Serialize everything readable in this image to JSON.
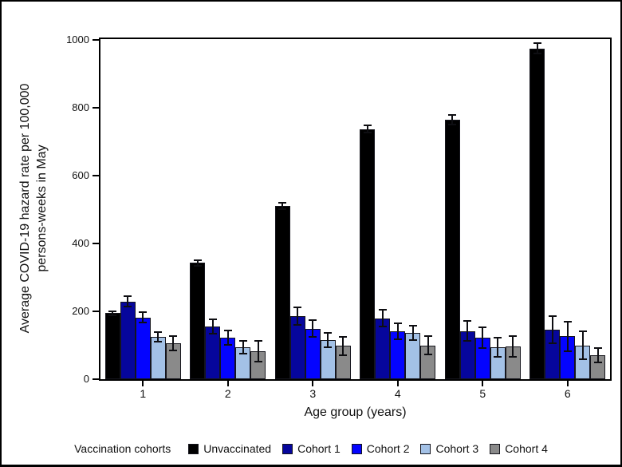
{
  "chart_data": {
    "type": "bar",
    "categories": [
      "1",
      "2",
      "3",
      "4",
      "5",
      "6"
    ],
    "series": [
      {
        "name": "Unvaccinated",
        "color": "#000000",
        "values": [
          195,
          343,
          510,
          737,
          765,
          975
        ],
        "errors": [
          6,
          8,
          9,
          11,
          15,
          16
        ]
      },
      {
        "name": "Cohort 1",
        "color": "#06069c",
        "values": [
          229,
          155,
          185,
          180,
          142,
          147
        ],
        "errors": [
          15,
          22,
          26,
          24,
          30,
          40
        ]
      },
      {
        "name": "Cohort 2",
        "color": "#0404ff",
        "values": [
          182,
          123,
          149,
          141,
          122,
          126
        ],
        "errors": [
          15,
          21,
          25,
          24,
          30,
          43
        ]
      },
      {
        "name": "Cohort 3",
        "color": "#a3c1e6",
        "values": [
          125,
          94,
          115,
          136,
          94,
          100
        ],
        "errors": [
          14,
          19,
          22,
          21,
          29,
          41
        ]
      },
      {
        "name": "Cohort 4",
        "color": "#8a8a8a",
        "values": [
          106,
          82,
          98,
          100,
          96,
          71
        ],
        "errors": [
          21,
          31,
          27,
          27,
          30,
          21
        ]
      }
    ],
    "xlabel": "Age group (years)",
    "ylabel": "Average COVID-19 hazard rate per 100,000\npersons-weeks in May",
    "ylim": [
      0,
      1012
    ],
    "yticks": [
      0,
      200,
      400,
      600,
      800,
      1000
    ],
    "legend_title": "Vaccination cohorts",
    "legend_position": "bottom",
    "grid": "off",
    "error_bars": "on",
    "frame_color": "#000000",
    "background_color": "#ffffff"
  }
}
